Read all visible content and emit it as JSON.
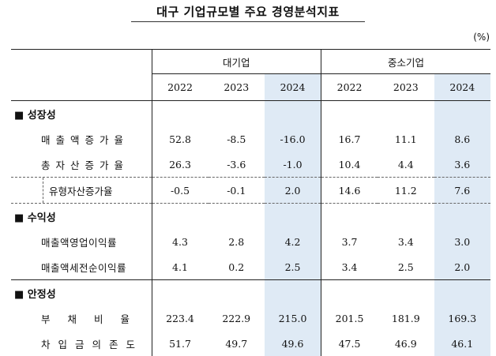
{
  "title": "대구 기업규모별 주요 경영분석지표",
  "unit": "(%)",
  "groups": [
    "대기업",
    "중소기업"
  ],
  "years": [
    "2022",
    "2023",
    "2024",
    "2022",
    "2023",
    "2024"
  ],
  "sections": [
    {
      "label": "■ 성장성",
      "rows": [
        {
          "label": "매출액증가율",
          "values": [
            "52.8",
            "-8.5",
            "-16.0",
            "16.7",
            "11.1",
            "8.6"
          ]
        },
        {
          "label": "총자산증가율",
          "values": [
            "26.3",
            "-3.6",
            "-1.0",
            "10.4",
            "4.4",
            "3.6"
          ]
        },
        {
          "label": "유형자산증가율",
          "values": [
            "-0.5",
            "-0.1",
            "2.0",
            "14.6",
            "11.2",
            "7.6"
          ]
        }
      ]
    },
    {
      "label": "■ 수익성",
      "rows": [
        {
          "label": "매출액영업이익률",
          "values": [
            "4.3",
            "2.8",
            "4.2",
            "3.7",
            "3.4",
            "3.0"
          ]
        },
        {
          "label": "매출액세전순이익률",
          "values": [
            "4.1",
            "0.2",
            "2.5",
            "3.4",
            "2.5",
            "2.0"
          ]
        }
      ]
    },
    {
      "label": "■ 안정성",
      "rows": [
        {
          "label": "부채비율",
          "values": [
            "223.4",
            "222.9",
            "215.0",
            "201.5",
            "181.9",
            "169.3"
          ]
        },
        {
          "label": "차입금의존도",
          "values": [
            "51.7",
            "49.7",
            "49.6",
            "47.5",
            "46.9",
            "46.1"
          ]
        }
      ]
    }
  ]
}
